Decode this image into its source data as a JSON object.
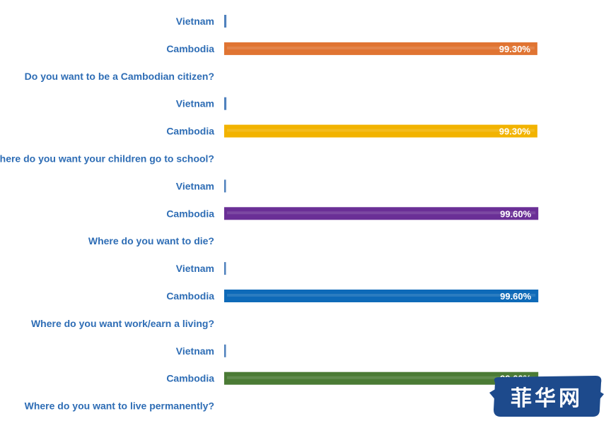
{
  "chart_data": {
    "type": "bar",
    "orientation": "horizontal",
    "x_max": 100,
    "categories": [
      {
        "label": "Vietnam",
        "value": 0.7,
        "value_label": "",
        "color": "#4f81bd"
      },
      {
        "label": "Cambodia",
        "value": 99.3,
        "value_label": "99.30%",
        "color": "#e07432"
      },
      {
        "label": "Do you want to be a Cambodian citizen?",
        "value": null,
        "value_label": "",
        "color": ""
      },
      {
        "label": "Vietnam",
        "value": 0.7,
        "value_label": "",
        "color": "#4f81bd"
      },
      {
        "label": "Cambodia",
        "value": 99.3,
        "value_label": "99.30%",
        "color": "#f2b300"
      },
      {
        "label": "Where do you want your children go to school?",
        "value": null,
        "value_label": "",
        "color": ""
      },
      {
        "label": "Vietnam",
        "value": 0.4,
        "value_label": "",
        "color": "#4f81bd"
      },
      {
        "label": "Cambodia",
        "value": 99.6,
        "value_label": "99.60%",
        "color": "#6a2f96"
      },
      {
        "label": "Where do you want to die?",
        "value": null,
        "value_label": "",
        "color": ""
      },
      {
        "label": "Vietnam",
        "value": 0.4,
        "value_label": "",
        "color": "#4f81bd"
      },
      {
        "label": "Cambodia",
        "value": 99.6,
        "value_label": "99.60%",
        "color": "#0e6ab8"
      },
      {
        "label": "Where do you want work/earn a living?",
        "value": null,
        "value_label": "",
        "color": ""
      },
      {
        "label": "Vietnam",
        "value": 0.4,
        "value_label": "",
        "color": "#4f81bd"
      },
      {
        "label": "Cambodia",
        "value": 99.6,
        "value_label": "99.60%",
        "color": "#4b7b35"
      },
      {
        "label": "Where do you want to live permanently?",
        "value": null,
        "value_label": "",
        "color": ""
      }
    ]
  },
  "watermark": {
    "text": "菲华网",
    "color": "#1d4a8c"
  }
}
